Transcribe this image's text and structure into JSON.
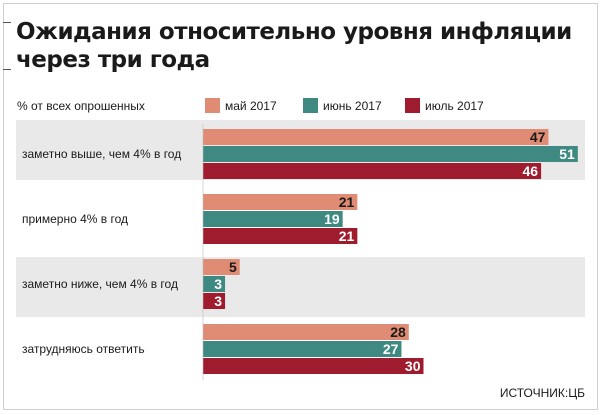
{
  "chart_data": {
    "type": "bar",
    "orientation": "horizontal",
    "title": "Ожидания относительно уровня инфляции через три года",
    "unit_label": "% от всех опрошенных",
    "categories": [
      "заметно выше, чем 4% в год",
      "примерно 4% в год",
      "заметно ниже, чем 4% в год",
      "затрудняюсь ответить"
    ],
    "series": [
      {
        "name": "май 2017",
        "color": "#e08c74",
        "values": [
          47,
          21,
          5,
          28
        ]
      },
      {
        "name": "июнь 2017",
        "color": "#3e8a82",
        "values": [
          51,
          19,
          3,
          27
        ]
      },
      {
        "name": "июль 2017",
        "color": "#9e1c2e",
        "values": [
          46,
          21,
          3,
          30
        ]
      }
    ],
    "source": "ИСТОЧНИК:ЦБ",
    "shaded_groups": [
      0,
      2
    ],
    "shade_color": "#e9e9e9",
    "grid": false
  }
}
